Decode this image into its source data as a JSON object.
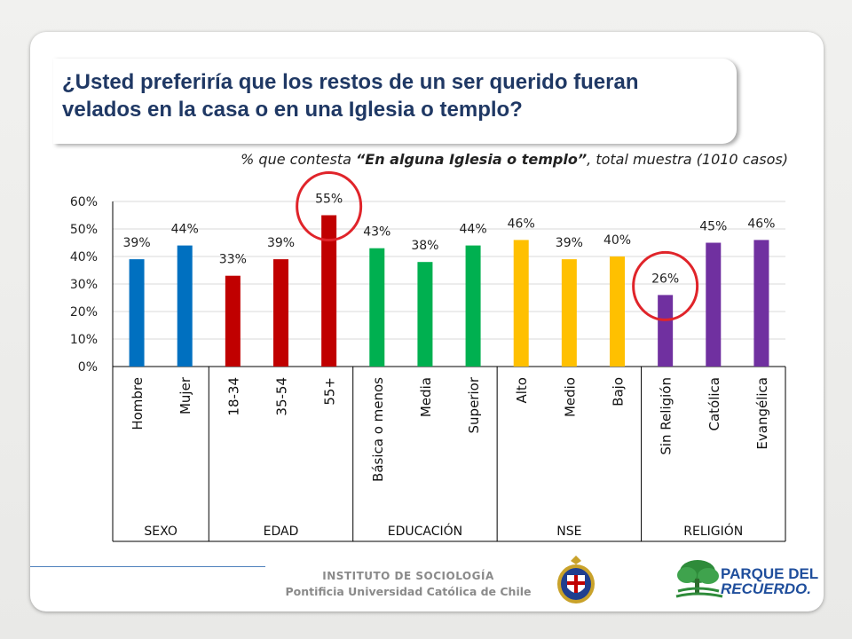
{
  "title": "¿Usted preferiría que los restos de un ser querido fueran velados en la casa o en una Iglesia o templo?",
  "subtitle": {
    "prefix": "% que contesta ",
    "bold": "“En alguna Iglesia o templo”",
    "suffix": ", total muestra (1010 casos)"
  },
  "footer": {
    "institute": "INSTITUTO DE SOCIOLOGÍA",
    "university": "Pontificia Universidad Católica de Chile",
    "partner_line1": "PARQUE DEL",
    "partner_line2": "RECUERDO."
  },
  "colors": {
    "title": "#1f3864",
    "SEXO": "#0070c0",
    "EDAD": "#c00000",
    "EDUCACIÓN": "#00b050",
    "NSE": "#ffc000",
    "RELIGIÓN": "#7030a0",
    "highlight": "#e0242a"
  },
  "chart_data": {
    "type": "bar",
    "ylim": [
      0,
      60
    ],
    "yticks": [
      "0%",
      "10%",
      "20%",
      "30%",
      "40%",
      "50%",
      "60%"
    ],
    "grid": true,
    "groups": [
      "SEXO",
      "EDAD",
      "EDUCACIÓN",
      "NSE",
      "RELIGIÓN"
    ],
    "bars": [
      {
        "category": "Hombre",
        "group": "SEXO",
        "value": 39,
        "label": "39%"
      },
      {
        "category": "Mujer",
        "group": "SEXO",
        "value": 44,
        "label": "44%"
      },
      {
        "category": "18-34",
        "group": "EDAD",
        "value": 33,
        "label": "33%"
      },
      {
        "category": "35-54",
        "group": "EDAD",
        "value": 39,
        "label": "39%"
      },
      {
        "category": "55+",
        "group": "EDAD",
        "value": 55,
        "label": "55%",
        "highlight": true
      },
      {
        "category": "Básica o menos",
        "group": "EDUCACIÓN",
        "value": 43,
        "label": "43%"
      },
      {
        "category": "Media",
        "group": "EDUCACIÓN",
        "value": 38,
        "label": "38%"
      },
      {
        "category": "Superior",
        "group": "EDUCACIÓN",
        "value": 44,
        "label": "44%"
      },
      {
        "category": "Alto",
        "group": "NSE",
        "value": 46,
        "label": "46%"
      },
      {
        "category": "Medio",
        "group": "NSE",
        "value": 39,
        "label": "39%"
      },
      {
        "category": "Bajo",
        "group": "NSE",
        "value": 40,
        "label": "40%"
      },
      {
        "category": "Sin Religión",
        "group": "RELIGIÓN",
        "value": 26,
        "label": "26%",
        "highlight": true
      },
      {
        "category": "Católica",
        "group": "RELIGIÓN",
        "value": 45,
        "label": "45%"
      },
      {
        "category": "Evangélica",
        "group": "RELIGIÓN",
        "value": 46,
        "label": "46%"
      }
    ]
  }
}
